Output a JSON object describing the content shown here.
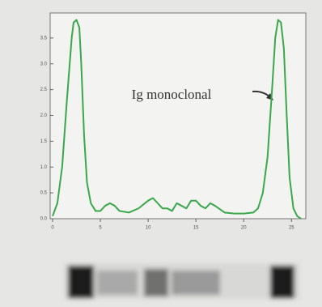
{
  "chart_data": {
    "type": "line",
    "annotation": "Ig monoclonal",
    "x": [
      0,
      0.5,
      1,
      1.5,
      2,
      2.2,
      2.5,
      2.8,
      3,
      3.3,
      3.6,
      4,
      4.5,
      5,
      5.5,
      6,
      6.5,
      7,
      8,
      9,
      10,
      10.5,
      11,
      11.5,
      12,
      12.5,
      13,
      13.5,
      14,
      14.5,
      15,
      15.5,
      16,
      16.5,
      17,
      18,
      19,
      20,
      21,
      21.5,
      22,
      22.5,
      23,
      23.3,
      23.6,
      23.9,
      24.2,
      24.5,
      24.8,
      25.2,
      25.6,
      26
    ],
    "series": [
      {
        "color": "#3aa84a",
        "values": [
          0.05,
          0.3,
          1.0,
          2.3,
          3.5,
          3.8,
          3.85,
          3.7,
          3.0,
          1.6,
          0.7,
          0.3,
          0.15,
          0.15,
          0.25,
          0.3,
          0.25,
          0.15,
          0.12,
          0.2,
          0.35,
          0.4,
          0.3,
          0.2,
          0.2,
          0.15,
          0.3,
          0.25,
          0.2,
          0.35,
          0.35,
          0.25,
          0.2,
          0.3,
          0.25,
          0.12,
          0.1,
          0.1,
          0.12,
          0.2,
          0.5,
          1.2,
          2.6,
          3.5,
          3.85,
          3.8,
          3.3,
          2.0,
          0.8,
          0.2,
          0.05,
          0.0
        ]
      }
    ],
    "xlim": [
      0,
      26.5
    ],
    "xticks": [
      0,
      5,
      10,
      15,
      20,
      25
    ],
    "ylim": [
      0,
      4
    ],
    "yticks": [
      {
        "value": 0,
        "label": "0.0"
      },
      0.5,
      {
        "value": 1,
        "label": "1.0"
      },
      1.5,
      {
        "value": 2,
        "label": "2.0"
      },
      2.5,
      {
        "value": 3,
        "label": "3.0"
      },
      3.5
    ]
  }
}
